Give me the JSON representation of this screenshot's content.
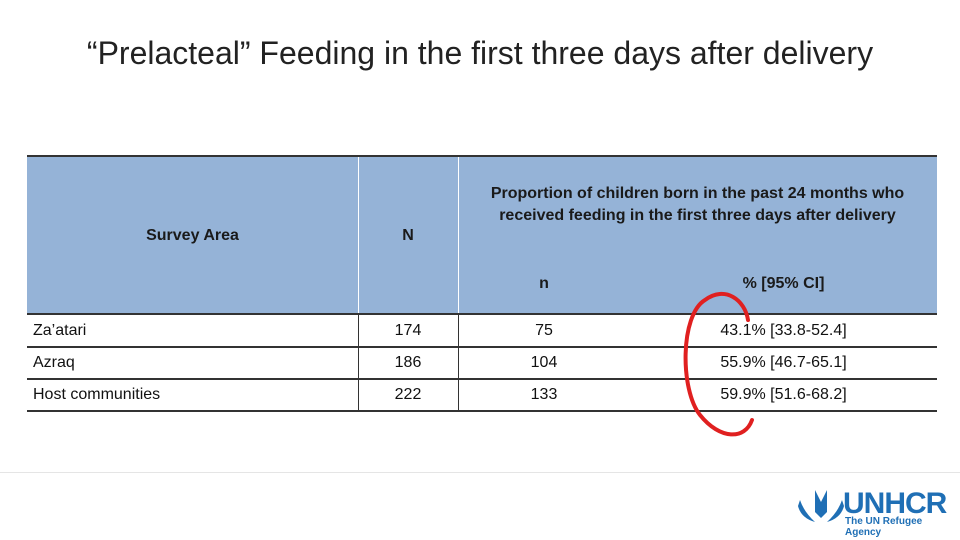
{
  "title": "“Prelacteal” Feeding in the first three days after delivery",
  "table": {
    "header": {
      "area": "Survey Area",
      "N": "N",
      "group": "Proportion of children born in the past 24 months who received feeding in the first three days after delivery",
      "n": "n",
      "pct": "% [95% CI]"
    },
    "rows": [
      [
        "Za’atari",
        "174",
        "75",
        "43.1% [33.8-52.4]"
      ],
      [
        "Azraq",
        "186",
        "104",
        "55.9% [46.7-65.1]"
      ],
      [
        "Host communities",
        "222",
        "133",
        "59.9% [51.6-68.2]"
      ]
    ]
  },
  "logo": {
    "name": "UNHCR",
    "tagline": "The UN Refugee Agency"
  }
}
